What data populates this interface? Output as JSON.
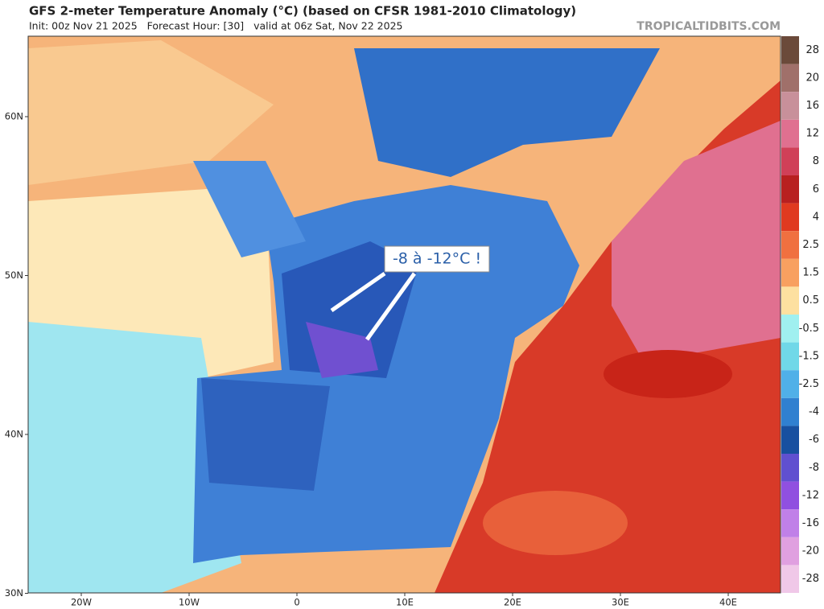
{
  "header": {
    "title": "GFS 2-meter Temperature Anomaly (°C) (based on CFSR 1981-2010 Climatology)",
    "subtitle": "Init: 00z Nov 21 2025   Forecast Hour: [30]   valid at 06z Sat, Nov 22 2025",
    "site": "TROPICALTIDBITS.COM"
  },
  "map": {
    "lat_labels": [
      "60N",
      "50N",
      "40N",
      "30N"
    ],
    "lon_labels": [
      "20W",
      "10W",
      "0",
      "10E",
      "20E",
      "30E",
      "40E"
    ],
    "annotation": "-8 à -12°C !"
  },
  "colorbar": {
    "labels": [
      "28",
      "20",
      "16",
      "12",
      "8",
      "6",
      "4",
      "2.5",
      "1.5",
      "0.5",
      "-0.5",
      "-1.5",
      "-2.5",
      "-4",
      "-6",
      "-8",
      "-12",
      "-16",
      "-20",
      "-28"
    ],
    "colors": [
      "#6b4a3a",
      "#a0706a",
      "#c8909a",
      "#e07090",
      "#d04058",
      "#b82020",
      "#e03a20",
      "#f07040",
      "#f8a060",
      "#fde0a0",
      "#a0f0f0",
      "#70d8e8",
      "#50b0e8",
      "#3080d0",
      "#1850a0",
      "#6050d0",
      "#9050e0",
      "#c080e8",
      "#e0a0e0",
      "#f0c8e8"
    ]
  }
}
